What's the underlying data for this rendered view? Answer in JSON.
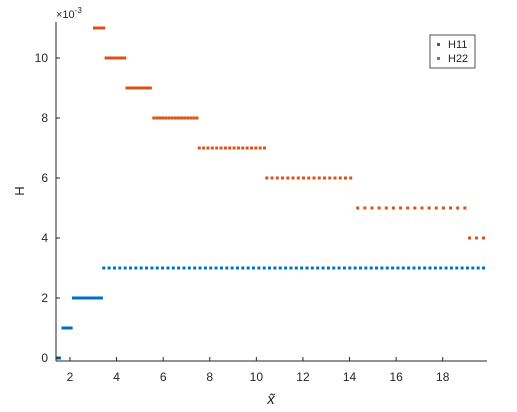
{
  "chart_data": {
    "type": "scatter",
    "title": "",
    "xlabel": "x̃",
    "ylabel": "H",
    "y_exponent_label": "×10",
    "y_exponent_power": "-3",
    "xlim": [
      1.4,
      19.9
    ],
    "ylim": [
      -0.0001,
      0.0112
    ],
    "x_ticks": [
      2,
      4,
      6,
      8,
      10,
      12,
      14,
      16,
      18
    ],
    "x_tick_labels": [
      "2",
      "4",
      "6",
      "8",
      "10",
      "12",
      "14",
      "16",
      "18"
    ],
    "y_ticks": [
      0,
      0.002,
      0.004,
      0.006,
      0.008,
      0.01
    ],
    "y_tick_labels": [
      "0",
      "2",
      "4",
      "6",
      "8",
      "10"
    ],
    "grid": false,
    "legend_position": "top-right",
    "series": [
      {
        "name": "H11",
        "color": "#0072BD",
        "segments": [
          {
            "y": 0.0,
            "x_start": 1.45,
            "x_end": 1.55,
            "step": 0.1
          },
          {
            "y": 0.001,
            "x_start": 1.7,
            "x_end": 2.05,
            "step": 0.09
          },
          {
            "y": 0.002,
            "x_start": 2.15,
            "x_end": 3.35,
            "step": 0.1
          },
          {
            "y": 0.003,
            "x_start": 3.45,
            "x_end": 19.75,
            "step": 0.23
          }
        ]
      },
      {
        "name": "H22",
        "color": "#D95319",
        "segments": [
          {
            "y": 0.011,
            "x_start": 3.05,
            "x_end": 3.45,
            "step": 0.1
          },
          {
            "y": 0.01,
            "x_start": 3.55,
            "x_end": 4.35,
            "step": 0.1
          },
          {
            "y": 0.009,
            "x_start": 4.45,
            "x_end": 5.45,
            "step": 0.1
          },
          {
            "y": 0.008,
            "x_start": 5.6,
            "x_end": 7.45,
            "step": 0.13
          },
          {
            "y": 0.007,
            "x_start": 7.55,
            "x_end": 10.35,
            "step": 0.19
          },
          {
            "y": 0.006,
            "x_start": 10.45,
            "x_end": 14.05,
            "step": 0.23
          },
          {
            "y": 0.005,
            "x_start": 14.35,
            "x_end": 18.95,
            "step": 0.3
          },
          {
            "y": 0.004,
            "x_start": 19.15,
            "x_end": 19.75,
            "step": 0.3
          }
        ]
      }
    ]
  }
}
